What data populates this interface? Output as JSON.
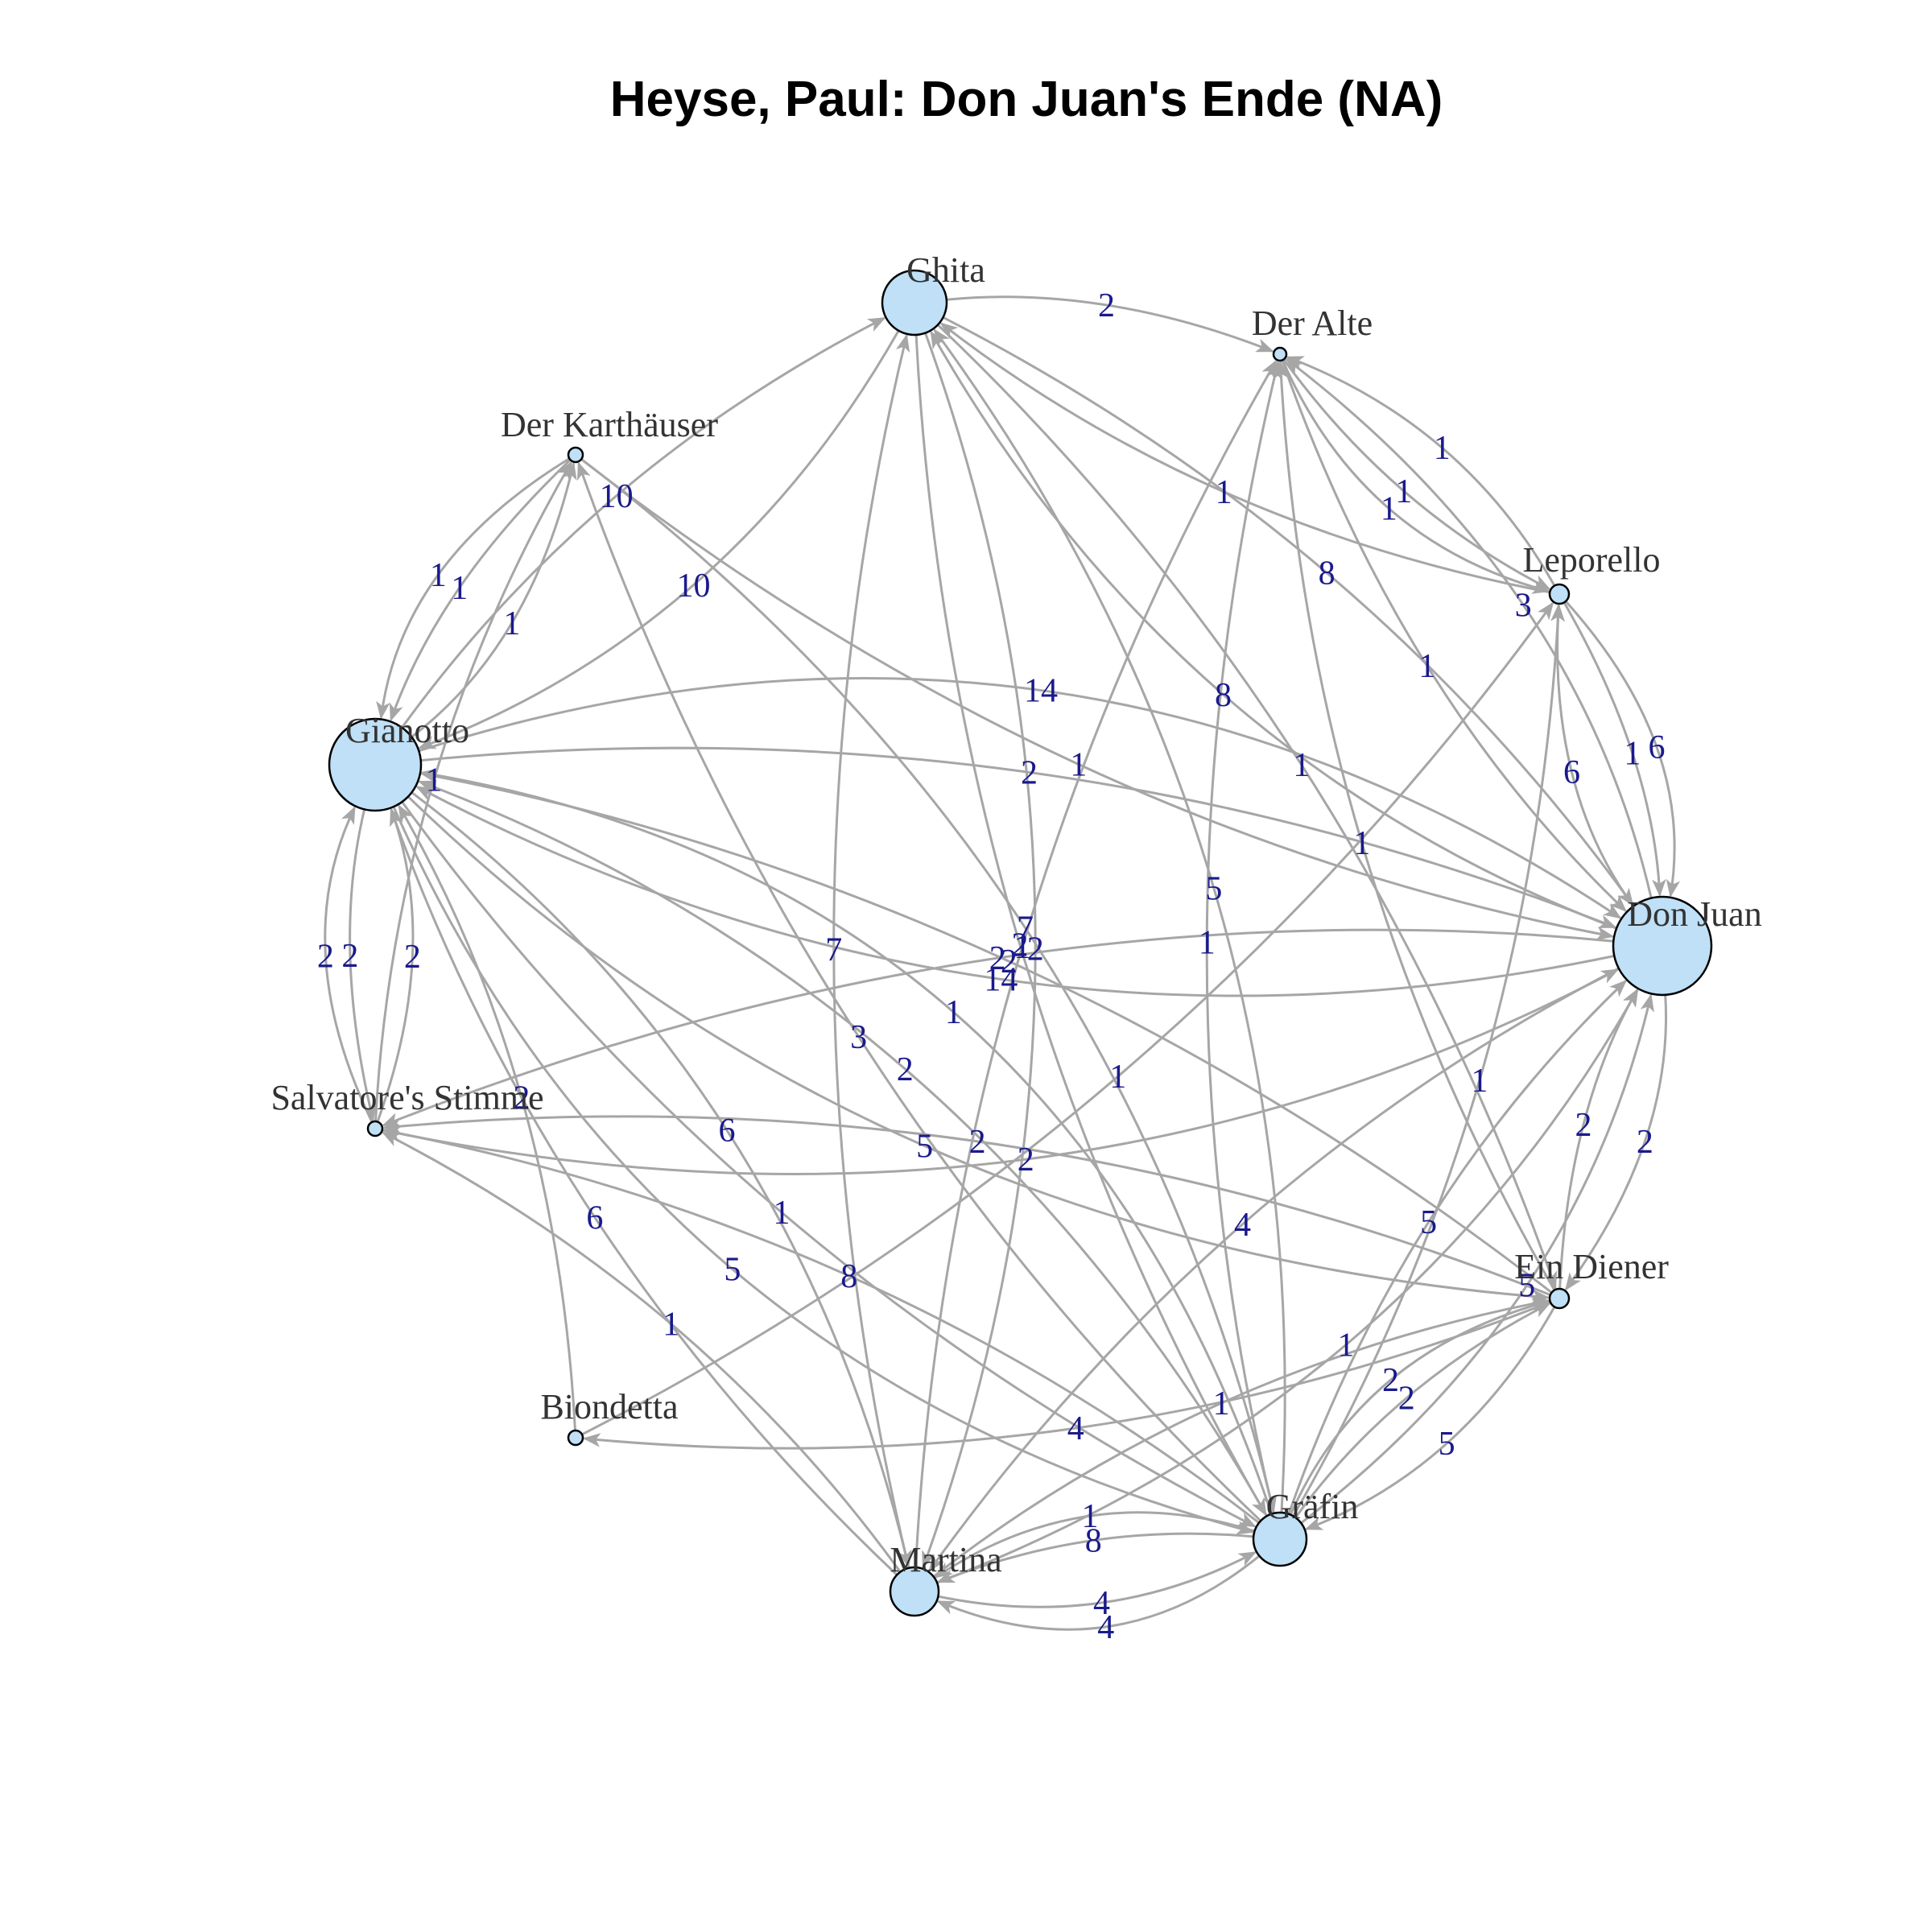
{
  "title": "Heyse, Paul: Don Juan's Ende (NA)",
  "colors": {
    "node_fill": "#bfe0f6",
    "edge": "#a6a6a6",
    "edge_label": "#1a1a8c"
  },
  "nodes": [
    {
      "id": "ghita",
      "label": "Ghita",
      "degree": 3
    },
    {
      "id": "der-alte",
      "label": "Der Alte",
      "degree": 1
    },
    {
      "id": "der-karthauser",
      "label": "Der Karthäuser",
      "degree": 1
    },
    {
      "id": "leporello",
      "label": "Leporello",
      "degree": 1.2
    },
    {
      "id": "gianotto",
      "label": "Gianotto",
      "degree": 4
    },
    {
      "id": "don-juan",
      "label": "Don Juan",
      "degree": 5
    },
    {
      "id": "salvatores-stimme",
      "label": "Salvatore's Stimme",
      "degree": 1
    },
    {
      "id": "ein-diener",
      "label": "Ein Diener",
      "degree": 1.2
    },
    {
      "id": "biondetta",
      "label": "Biondetta",
      "degree": 1
    },
    {
      "id": "grafin",
      "label": "Gräfin",
      "degree": 2.7
    },
    {
      "id": "martina",
      "label": "Martina",
      "degree": 2.4
    }
  ],
  "edges": [
    {
      "from": "gianotto",
      "to": "ghita",
      "weight": "10"
    },
    {
      "from": "der-karthauser",
      "to": "gianotto",
      "weight": "1"
    },
    {
      "from": "gianotto",
      "to": "der-karthauser",
      "weight": "1"
    },
    {
      "from": "der-karthauser",
      "to": "gianotto",
      "weight": "1"
    },
    {
      "from": "ghita",
      "to": "gianotto",
      "weight": "10"
    },
    {
      "from": "ghita",
      "to": "der-alte",
      "weight": "2"
    },
    {
      "from": "der-alte",
      "to": "leporello",
      "weight": "1"
    },
    {
      "from": "leporello",
      "to": "der-alte",
      "weight": "1"
    },
    {
      "from": "der-alte",
      "to": "leporello",
      "weight": "1"
    },
    {
      "from": "leporello",
      "to": "ghita",
      "weight": "1"
    },
    {
      "from": "ghita",
      "to": "don-juan",
      "weight": "8"
    },
    {
      "from": "don-juan",
      "to": "ghita",
      "weight": "8"
    },
    {
      "from": "der-alte",
      "to": "don-juan",
      "weight": "1"
    },
    {
      "from": "don-juan",
      "to": "der-alte",
      "weight": "3"
    },
    {
      "from": "leporello",
      "to": "don-juan",
      "weight": "1"
    },
    {
      "from": "don-juan",
      "to": "leporello",
      "weight": "6"
    },
    {
      "from": "leporello",
      "to": "don-juan",
      "weight": "6"
    },
    {
      "from": "gianotto",
      "to": "don-juan",
      "weight": "2"
    },
    {
      "from": "don-juan",
      "to": "gianotto",
      "weight": "14"
    },
    {
      "from": "gianotto",
      "to": "don-juan",
      "weight": "14"
    },
    {
      "from": "martina",
      "to": "ghita",
      "weight": "7"
    },
    {
      "from": "ghita",
      "to": "grafin",
      "weight": "2"
    },
    {
      "from": "grafin",
      "to": "ghita",
      "weight": "5"
    },
    {
      "from": "grafin",
      "to": "der-karthauser",
      "weight": "3"
    },
    {
      "from": "martina",
      "to": "der-alte",
      "weight": "1"
    },
    {
      "from": "biondetta",
      "to": "leporello",
      "weight": "1"
    },
    {
      "from": "ein-diener",
      "to": "gianotto",
      "weight": "2"
    },
    {
      "from": "don-juan",
      "to": "salvatores-stimme",
      "weight": "2"
    },
    {
      "from": "salvatores-stimme",
      "to": "don-juan",
      "weight": "2"
    },
    {
      "from": "don-juan",
      "to": "martina",
      "weight": "4"
    },
    {
      "from": "gianotto",
      "to": "salvatores-stimme",
      "weight": "2"
    },
    {
      "from": "salvatores-stimme",
      "to": "gianotto",
      "weight": "2"
    },
    {
      "from": "salvatores-stimme",
      "to": "gianotto",
      "weight": "2"
    },
    {
      "from": "salvatores-stimme",
      "to": "der-karthauser",
      "weight": "1"
    },
    {
      "from": "gianotto",
      "to": "grafin",
      "weight": "1"
    },
    {
      "from": "grafin",
      "to": "gianotto",
      "weight": "2"
    },
    {
      "from": "martina",
      "to": "gianotto",
      "weight": "6"
    },
    {
      "from": "biondetta",
      "to": "gianotto",
      "weight": "2"
    },
    {
      "from": "grafin",
      "to": "salvatores-stimme",
      "weight": "8"
    },
    {
      "from": "ein-diener",
      "to": "salvatores-stimme",
      "weight": "2"
    },
    {
      "from": "gianotto",
      "to": "martina",
      "weight": "6"
    },
    {
      "from": "martina",
      "to": "salvatores-stimme",
      "weight": "1"
    },
    {
      "from": "ein-diener",
      "to": "biondetta",
      "weight": "4"
    },
    {
      "from": "der-karthauser",
      "to": "grafin",
      "weight": "7"
    },
    {
      "from": "grafin",
      "to": "martina",
      "weight": "8"
    },
    {
      "from": "martina",
      "to": "grafin",
      "weight": "4"
    },
    {
      "from": "grafin",
      "to": "martina",
      "weight": "1"
    },
    {
      "from": "grafin",
      "to": "martina",
      "weight": "4"
    },
    {
      "from": "grafin",
      "to": "ein-diener",
      "weight": "2"
    },
    {
      "from": "ein-diener",
      "to": "grafin",
      "weight": "5"
    },
    {
      "from": "grafin",
      "to": "ein-diener",
      "weight": "2"
    },
    {
      "from": "ein-diener",
      "to": "don-juan",
      "weight": "2"
    },
    {
      "from": "don-juan",
      "to": "ein-diener",
      "weight": "2"
    },
    {
      "from": "grafin",
      "to": "don-juan",
      "weight": "5"
    },
    {
      "from": "martina",
      "to": "don-juan",
      "weight": "1"
    },
    {
      "from": "grafin",
      "to": "der-alte",
      "weight": "1"
    },
    {
      "from": "ein-diener",
      "to": "der-alte",
      "weight": "1"
    },
    {
      "from": "grafin",
      "to": "leporello",
      "weight": "1"
    },
    {
      "from": "martina",
      "to": "ein-diener",
      "weight": "1"
    },
    {
      "from": "grafin",
      "to": "don-juan",
      "weight": "5"
    },
    {
      "from": "gianotto",
      "to": "ein-diener",
      "weight": "5"
    },
    {
      "from": "gianotto",
      "to": "grafin",
      "weight": "5"
    },
    {
      "from": "ghita",
      "to": "martina",
      "weight": "2"
    },
    {
      "from": "der-karthauser",
      "to": "don-juan",
      "weight": "1"
    },
    {
      "from": "ghita",
      "to": "ein-diener",
      "weight": "1"
    },
    {
      "from": "grafin",
      "to": "gianotto",
      "weight": "1"
    }
  ]
}
